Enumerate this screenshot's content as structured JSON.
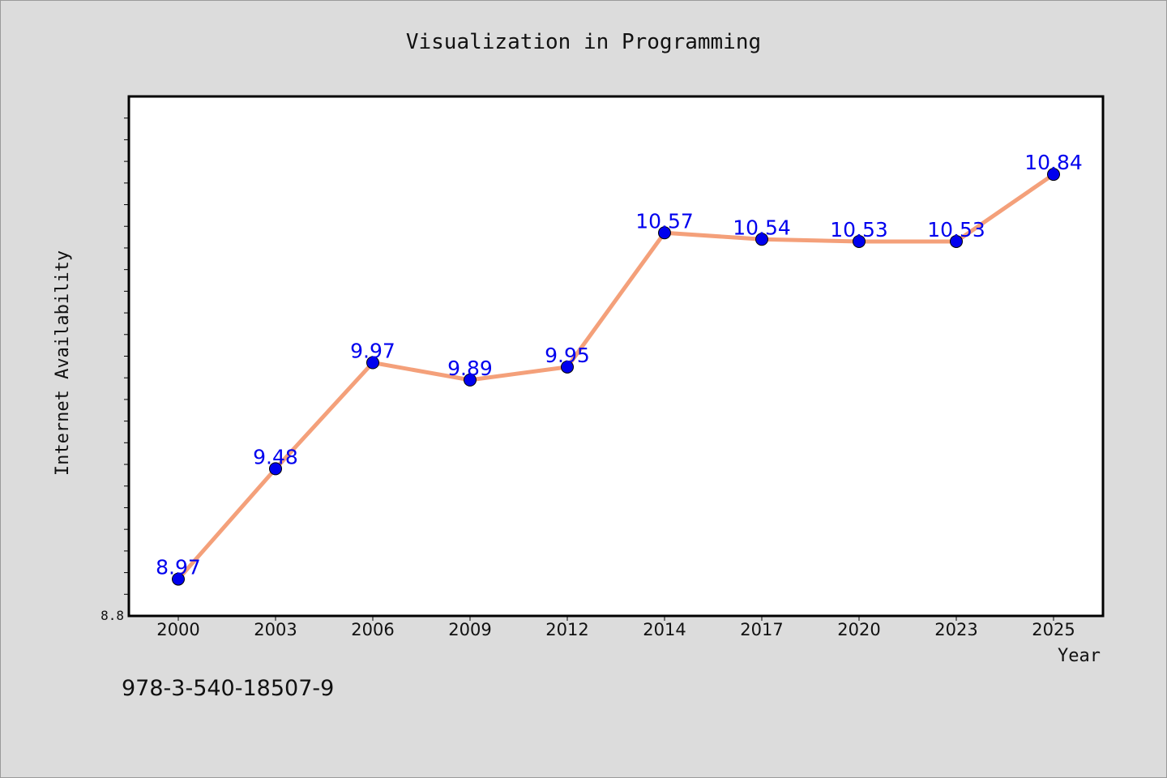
{
  "chart_data": {
    "type": "line",
    "title": "Visualization in Programming",
    "xlabel": "Year",
    "ylabel": "Internet Availability",
    "categories": [
      "2000",
      "2003",
      "2006",
      "2009",
      "2012",
      "2014",
      "2017",
      "2020",
      "2023",
      "2025"
    ],
    "series": [
      {
        "values": [
          8.97,
          9.48,
          9.97,
          9.89,
          9.95,
          10.57,
          10.54,
          10.53,
          10.53,
          10.84
        ],
        "data_labels": [
          "8.97",
          "9.48",
          "9.97",
          "9.89",
          "9.95",
          "10.57",
          "10.54",
          "10.53",
          "10.53",
          "10.84"
        ]
      }
    ],
    "ylim": [
      8.8,
      11.2
    ],
    "ytick_labels": [
      "8.8"
    ],
    "grid": false,
    "line_color": "#f4a07a",
    "marker_color": "#0000ee",
    "label_color": "#0000ee"
  },
  "footer_text": "978-3-540-18507-9"
}
